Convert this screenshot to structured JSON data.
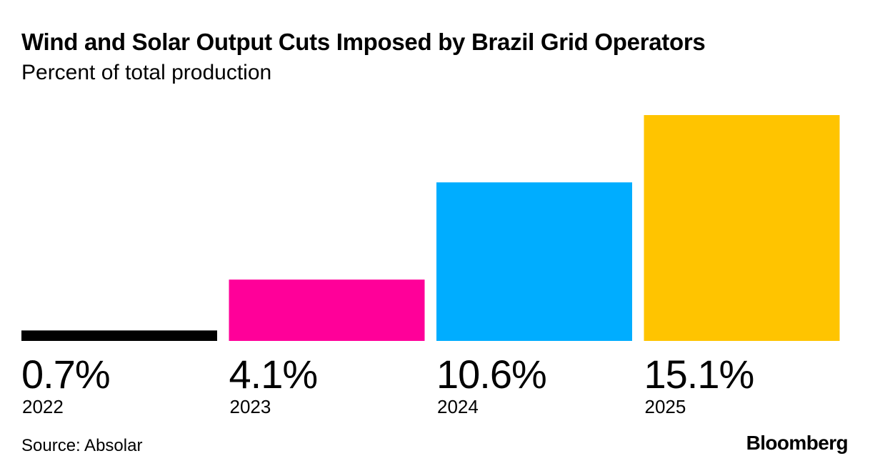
{
  "source": "Source: Absolar",
  "brand": "Bloomberg",
  "chart_data": {
    "type": "bar",
    "title": "Wind and Solar Output Cuts Imposed by Brazil Grid Operators",
    "subtitle": "Percent of total production",
    "categories": [
      "2022",
      "2023",
      "2024",
      "2025"
    ],
    "values": [
      0.7,
      4.1,
      10.6,
      15.1
    ],
    "value_labels": [
      "0.7%",
      "4.1%",
      "10.6%",
      "15.1%"
    ],
    "colors": [
      "#000000",
      "#ff0099",
      "#00adff",
      "#ffc400"
    ],
    "ylim": [
      0,
      15.1
    ],
    "grid": false,
    "legend": "none"
  }
}
